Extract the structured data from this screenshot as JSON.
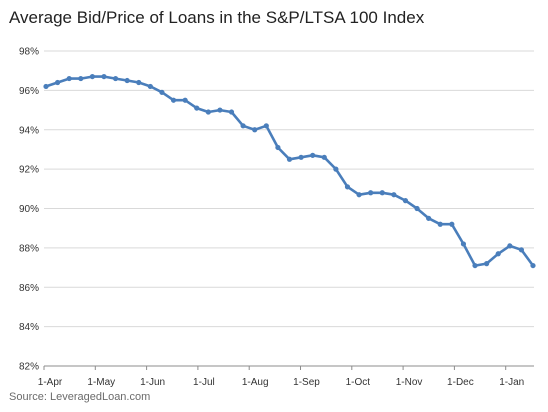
{
  "chart_data": {
    "type": "line",
    "title": "Average Bid/Price of Loans in the S&P/LTSA 100 Index",
    "xlabel": "",
    "ylabel": "",
    "ylim": [
      82,
      98
    ],
    "yticks": [
      82,
      84,
      86,
      88,
      90,
      92,
      94,
      96,
      98
    ],
    "ytick_labels": [
      "82%",
      "84%",
      "86%",
      "88%",
      "90%",
      "92%",
      "94%",
      "96%",
      "98%"
    ],
    "xtick_labels": [
      "1-Apr",
      "1-May",
      "1-Jun",
      "1-Jul",
      "1-Aug",
      "1-Sep",
      "1-Oct",
      "1-Nov",
      "1-Dec",
      "1-Jan"
    ],
    "grid": true,
    "legend": "none",
    "line_color": "#4a7ebb",
    "series": [
      {
        "values": [
          96.2,
          96.4,
          96.6,
          96.6,
          96.7,
          96.7,
          96.6,
          96.5,
          96.4,
          96.2,
          95.9,
          95.5,
          95.5,
          95.1,
          94.9,
          95.0,
          94.9,
          94.2,
          94.0,
          94.2,
          93.1,
          92.5,
          92.6,
          92.7,
          92.6,
          92.0,
          91.1,
          90.7,
          90.8,
          90.8,
          90.7,
          90.4,
          90.0,
          89.5,
          89.2,
          89.2,
          88.2,
          87.1,
          87.2,
          87.7,
          88.1,
          87.9,
          87.1
        ]
      }
    ],
    "source": "Source: LeveragedLoan.com"
  }
}
